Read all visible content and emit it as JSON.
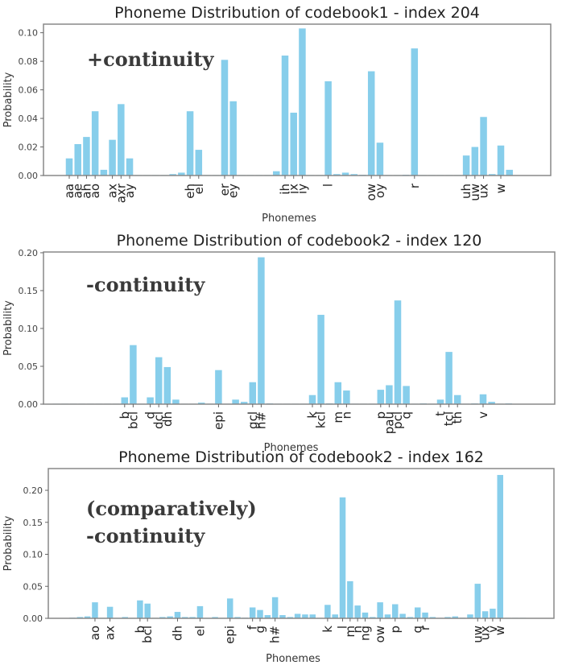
{
  "chart_data": [
    {
      "type": "bar",
      "title": "Phoneme Distribution of codebook1 - index 204",
      "xlabel": "Phonemes",
      "ylabel": "Probability",
      "ylim": [
        0,
        0.106
      ],
      "yticks": [
        "0.00",
        "0.02",
        "0.04",
        "0.06",
        "0.08",
        "0.10"
      ],
      "annotation": [
        "+continuity"
      ],
      "bars": [
        {
          "label": "aa",
          "value": 0.012
        },
        {
          "label": "ae",
          "value": 0.022
        },
        {
          "label": "ah",
          "value": 0.027
        },
        {
          "label": "ao",
          "value": 0.045
        },
        {
          "label": "",
          "value": 0.004
        },
        {
          "label": "ax",
          "value": 0.025
        },
        {
          "label": "axr",
          "value": 0.05
        },
        {
          "label": "ay",
          "value": 0.012
        },
        {
          "label": "",
          "value": 0.0
        },
        {
          "label": "",
          "value": 0.0
        },
        {
          "label": "",
          "value": 0.0
        },
        {
          "label": "",
          "value": 0.0
        },
        {
          "label": "",
          "value": 0.001
        },
        {
          "label": "",
          "value": 0.002
        },
        {
          "label": "eh",
          "value": 0.045
        },
        {
          "label": "el",
          "value": 0.018
        },
        {
          "label": "",
          "value": 0.0
        },
        {
          "label": "",
          "value": 0.0
        },
        {
          "label": "er",
          "value": 0.081
        },
        {
          "label": "ey",
          "value": 0.052
        },
        {
          "label": "",
          "value": 0.0
        },
        {
          "label": "",
          "value": 0.0
        },
        {
          "label": "",
          "value": 0.0
        },
        {
          "label": "",
          "value": 0.0
        },
        {
          "label": "",
          "value": 0.003
        },
        {
          "label": "ih",
          "value": 0.084
        },
        {
          "label": "ix",
          "value": 0.044
        },
        {
          "label": "iy",
          "value": 0.103
        },
        {
          "label": "",
          "value": 0.0
        },
        {
          "label": "",
          "value": 0.0
        },
        {
          "label": "l",
          "value": 0.066
        },
        {
          "label": "",
          "value": 0.001
        },
        {
          "label": "",
          "value": 0.002
        },
        {
          "label": "",
          "value": 0.001
        },
        {
          "label": "",
          "value": 0.0005
        },
        {
          "label": "ow",
          "value": 0.073
        },
        {
          "label": "oy",
          "value": 0.023
        },
        {
          "label": "",
          "value": 0.0
        },
        {
          "label": "",
          "value": 0.0
        },
        {
          "label": "",
          "value": 0.0005
        },
        {
          "label": "r",
          "value": 0.089
        },
        {
          "label": "",
          "value": 0.0
        },
        {
          "label": "",
          "value": 0.0
        },
        {
          "label": "",
          "value": 0.0
        },
        {
          "label": "",
          "value": 0.0
        },
        {
          "label": "",
          "value": 0.0
        },
        {
          "label": "uh",
          "value": 0.014
        },
        {
          "label": "uw",
          "value": 0.02
        },
        {
          "label": "ux",
          "value": 0.041
        },
        {
          "label": "",
          "value": 0.001
        },
        {
          "label": "w",
          "value": 0.021
        },
        {
          "label": "",
          "value": 0.004
        }
      ]
    },
    {
      "type": "bar",
      "title": "Phoneme Distribution of codebook2 - index 120",
      "xlabel": "Phonemes",
      "ylabel": "Probability",
      "ylim": [
        0,
        0.201
      ],
      "yticks": [
        "0.00",
        "0.05",
        "0.10",
        "0.15",
        "0.20"
      ],
      "annotation": [
        "-continuity"
      ],
      "bars": [
        {
          "label": "",
          "value": 0.0
        },
        {
          "label": "",
          "value": 0.0
        },
        {
          "label": "",
          "value": 0.0
        },
        {
          "label": "",
          "value": 0.0
        },
        {
          "label": "",
          "value": 0.0
        },
        {
          "label": "",
          "value": 0.0
        },
        {
          "label": "",
          "value": 0.0
        },
        {
          "label": "",
          "value": 0.0
        },
        {
          "label": "b",
          "value": 0.009
        },
        {
          "label": "bcl",
          "value": 0.078
        },
        {
          "label": "",
          "value": 0.0
        },
        {
          "label": "d",
          "value": 0.009
        },
        {
          "label": "dcl",
          "value": 0.062
        },
        {
          "label": "dh",
          "value": 0.049
        },
        {
          "label": "",
          "value": 0.006
        },
        {
          "label": "",
          "value": 0.0
        },
        {
          "label": "",
          "value": 0.0
        },
        {
          "label": "",
          "value": 0.002
        },
        {
          "label": "",
          "value": 0.0
        },
        {
          "label": "epi",
          "value": 0.045
        },
        {
          "label": "",
          "value": 0.0
        },
        {
          "label": "",
          "value": 0.006
        },
        {
          "label": "",
          "value": 0.003
        },
        {
          "label": "gcl",
          "value": 0.029
        },
        {
          "label": "h#",
          "value": 0.194
        },
        {
          "label": "",
          "value": 0.001
        },
        {
          "label": "",
          "value": 0.0
        },
        {
          "label": "",
          "value": 0.0
        },
        {
          "label": "",
          "value": 0.0005
        },
        {
          "label": "",
          "value": 0.0
        },
        {
          "label": "k",
          "value": 0.012
        },
        {
          "label": "kcl",
          "value": 0.118
        },
        {
          "label": "",
          "value": 0.001
        },
        {
          "label": "m",
          "value": 0.029
        },
        {
          "label": "n",
          "value": 0.018
        },
        {
          "label": "",
          "value": 0.0
        },
        {
          "label": "",
          "value": 0.0
        },
        {
          "label": "",
          "value": 0.0
        },
        {
          "label": "p",
          "value": 0.019
        },
        {
          "label": "pau",
          "value": 0.025
        },
        {
          "label": "pcl",
          "value": 0.137
        },
        {
          "label": "q",
          "value": 0.024
        },
        {
          "label": "",
          "value": 0.0
        },
        {
          "label": "",
          "value": 0.001
        },
        {
          "label": "",
          "value": 0.0
        },
        {
          "label": "t",
          "value": 0.006
        },
        {
          "label": "tcl",
          "value": 0.069
        },
        {
          "label": "th",
          "value": 0.012
        },
        {
          "label": "",
          "value": 0.0
        },
        {
          "label": "",
          "value": 0.001
        },
        {
          "label": "v",
          "value": 0.013
        },
        {
          "label": "",
          "value": 0.003
        },
        {
          "label": "",
          "value": 0.0
        },
        {
          "label": "",
          "value": 0.001
        }
      ]
    },
    {
      "type": "bar",
      "title": "Phoneme Distribution of codebook2 - index 162",
      "xlabel": "Phonemes",
      "ylabel": "Probability",
      "ylim": [
        0,
        0.234
      ],
      "yticks": [
        "0.00",
        "0.05",
        "0.10",
        "0.15",
        "0.20"
      ],
      "annotation": [
        "(comparatively)",
        "-continuity"
      ],
      "bars": [
        {
          "label": "",
          "value": 0.001
        },
        {
          "label": "",
          "value": 0.002
        },
        {
          "label": "",
          "value": 0.003
        },
        {
          "label": "ao",
          "value": 0.025
        },
        {
          "label": "",
          "value": 0.0
        },
        {
          "label": "ax",
          "value": 0.018
        },
        {
          "label": "",
          "value": 0.0
        },
        {
          "label": "",
          "value": 0.002
        },
        {
          "label": "",
          "value": 0.0
        },
        {
          "label": "b",
          "value": 0.028
        },
        {
          "label": "bcl",
          "value": 0.023
        },
        {
          "label": "",
          "value": 0.0
        },
        {
          "label": "",
          "value": 0.002
        },
        {
          "label": "",
          "value": 0.003
        },
        {
          "label": "dh",
          "value": 0.01
        },
        {
          "label": "",
          "value": 0.002
        },
        {
          "label": "",
          "value": 0.002
        },
        {
          "label": "el",
          "value": 0.019
        },
        {
          "label": "",
          "value": 0.0
        },
        {
          "label": "",
          "value": 0.002
        },
        {
          "label": "",
          "value": 0.0
        },
        {
          "label": "epi",
          "value": 0.031
        },
        {
          "label": "",
          "value": 0.002
        },
        {
          "label": "",
          "value": 0.001
        },
        {
          "label": "f",
          "value": 0.017
        },
        {
          "label": "g",
          "value": 0.013
        },
        {
          "label": "",
          "value": 0.005
        },
        {
          "label": "h#",
          "value": 0.033
        },
        {
          "label": "",
          "value": 0.005
        },
        {
          "label": "",
          "value": 0.002
        },
        {
          "label": "",
          "value": 0.007
        },
        {
          "label": "",
          "value": 0.006
        },
        {
          "label": "",
          "value": 0.006
        },
        {
          "label": "",
          "value": 0.0
        },
        {
          "label": "k",
          "value": 0.021
        },
        {
          "label": "",
          "value": 0.006
        },
        {
          "label": "l",
          "value": 0.189
        },
        {
          "label": "m",
          "value": 0.058
        },
        {
          "label": "n",
          "value": 0.02
        },
        {
          "label": "ng",
          "value": 0.009
        },
        {
          "label": "",
          "value": 0.002
        },
        {
          "label": "ow",
          "value": 0.025
        },
        {
          "label": "",
          "value": 0.006
        },
        {
          "label": "p",
          "value": 0.022
        },
        {
          "label": "",
          "value": 0.007
        },
        {
          "label": "",
          "value": 0.002
        },
        {
          "label": "q",
          "value": 0.017
        },
        {
          "label": "r",
          "value": 0.009
        },
        {
          "label": "",
          "value": 0.002
        },
        {
          "label": "",
          "value": 0.0
        },
        {
          "label": "",
          "value": 0.002
        },
        {
          "label": "",
          "value": 0.003
        },
        {
          "label": "",
          "value": 0.001
        },
        {
          "label": "",
          "value": 0.006
        },
        {
          "label": "uw",
          "value": 0.054
        },
        {
          "label": "ux",
          "value": 0.011
        },
        {
          "label": "v",
          "value": 0.015
        },
        {
          "label": "w",
          "value": 0.224
        },
        {
          "label": "",
          "value": 0.0005
        },
        {
          "label": "",
          "value": 0.0005
        },
        {
          "label": "",
          "value": 0.0005
        }
      ]
    }
  ]
}
